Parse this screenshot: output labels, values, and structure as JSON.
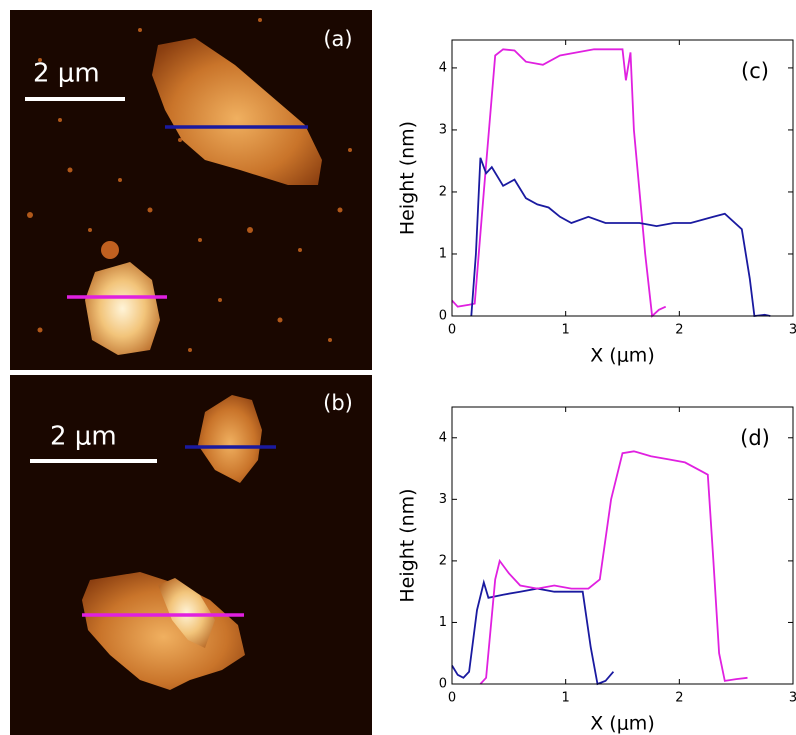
{
  "images": [
    {
      "label": "(a)",
      "scale_bar": "2 μm"
    },
    {
      "label": "(b)",
      "scale_bar": "2 μm"
    }
  ],
  "chart_data": [
    {
      "type": "line",
      "annotation": "(c)",
      "x_label": "X (μm)",
      "y_label": "Height (nm)",
      "xlim": [
        0,
        3
      ],
      "ylim": [
        0,
        4.45
      ],
      "xticks": [
        0,
        1,
        2,
        3
      ],
      "yticks": [
        0,
        1,
        2,
        3,
        4
      ],
      "series": [
        {
          "color": "#e020e0",
          "x": [
            0,
            0.05,
            0.15,
            0.2,
            0.28,
            0.38,
            0.45,
            0.55,
            0.65,
            0.8,
            0.95,
            1.1,
            1.25,
            1.4,
            1.5,
            1.53,
            1.57,
            1.6,
            1.7,
            1.76,
            1.82,
            1.88
          ],
          "values": [
            0.25,
            0.15,
            0.18,
            0.2,
            2,
            4.2,
            4.3,
            4.28,
            4.1,
            4.05,
            4.2,
            4.25,
            4.3,
            4.3,
            4.3,
            3.8,
            4.25,
            3,
            1,
            0,
            0.1,
            0.15
          ]
        },
        {
          "color": "#1a1aa0",
          "x": [
            0.17,
            0.21,
            0.25,
            0.3,
            0.35,
            0.45,
            0.55,
            0.65,
            0.75,
            0.85,
            0.95,
            1.05,
            1.2,
            1.35,
            1.5,
            1.65,
            1.8,
            1.95,
            2.1,
            2.3,
            2.4,
            2.55,
            2.62,
            2.66,
            2.75,
            2.8
          ],
          "values": [
            0,
            1,
            2.55,
            2.3,
            2.4,
            2.1,
            2.2,
            1.9,
            1.8,
            1.75,
            1.6,
            1.5,
            1.6,
            1.5,
            1.5,
            1.5,
            1.45,
            1.5,
            1.5,
            1.6,
            1.65,
            1.4,
            0.6,
            0,
            0.02,
            0
          ]
        }
      ]
    },
    {
      "type": "line",
      "annotation": "(d)",
      "x_label": "X (μm)",
      "y_label": "Height (nm)",
      "xlim": [
        0,
        3
      ],
      "ylim": [
        0,
        4.5
      ],
      "xticks": [
        0,
        1,
        2,
        3
      ],
      "yticks": [
        0,
        1,
        2,
        3,
        4
      ],
      "series": [
        {
          "color": "#1a1aa0",
          "x": [
            0,
            0.05,
            0.1,
            0.15,
            0.22,
            0.28,
            0.32,
            0.45,
            0.6,
            0.75,
            0.9,
            1.05,
            1.15,
            1.22,
            1.28,
            1.35,
            1.42
          ],
          "values": [
            0.3,
            0.15,
            0.1,
            0.2,
            1.2,
            1.65,
            1.4,
            1.45,
            1.5,
            1.55,
            1.5,
            1.5,
            1.5,
            0.6,
            0,
            0.05,
            0.2
          ]
        },
        {
          "color": "#e020e0",
          "x": [
            0.25,
            0.3,
            0.38,
            0.42,
            0.5,
            0.6,
            0.75,
            0.9,
            1.05,
            1.2,
            1.3,
            1.4,
            1.5,
            1.6,
            1.75,
            1.9,
            2.05,
            2.2,
            2.25,
            2.3,
            2.35,
            2.4,
            2.5,
            2.6
          ],
          "values": [
            0,
            0.1,
            1.7,
            2.0,
            1.8,
            1.6,
            1.55,
            1.6,
            1.55,
            1.55,
            1.7,
            3,
            3.75,
            3.78,
            3.7,
            3.65,
            3.6,
            3.45,
            3.4,
            2,
            0.5,
            0.05,
            0.08,
            0.1
          ]
        }
      ]
    }
  ]
}
